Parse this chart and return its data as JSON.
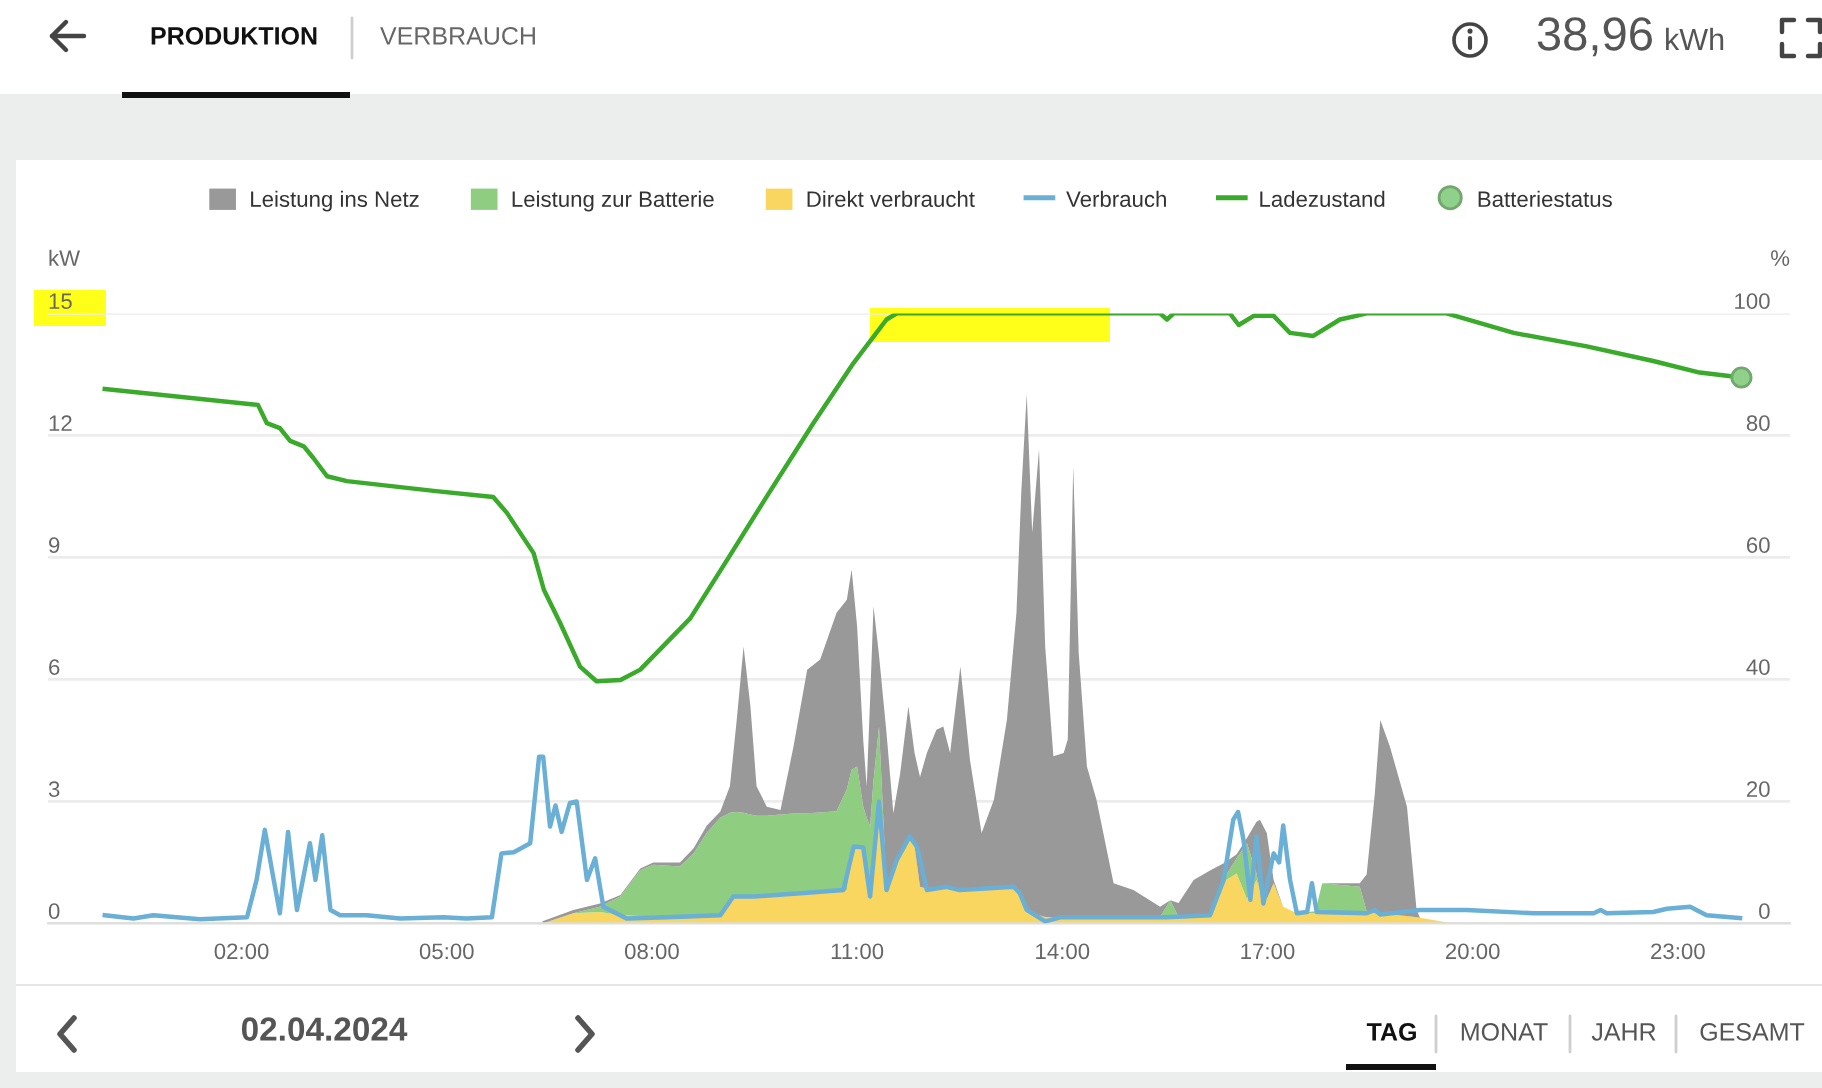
{
  "chart_data": {
    "type": "area",
    "stacked": true,
    "legend": "top",
    "grid": "y",
    "ylabel": "kW",
    "y2label": "%",
    "xlim": [
      -0.83,
      24.64
    ],
    "xticks": [
      {
        "value": 2,
        "label": "02:00"
      },
      {
        "value": 5,
        "label": "05:00"
      },
      {
        "value": 8,
        "label": "08:00"
      },
      {
        "value": 11,
        "label": "11:00"
      },
      {
        "value": 14,
        "label": "14:00"
      },
      {
        "value": 17,
        "label": "17:00"
      },
      {
        "value": 20,
        "label": "20:00"
      },
      {
        "value": 23,
        "label": "23:00"
      }
    ],
    "ylim": [
      0,
      15
    ],
    "yticks": [
      0,
      3,
      6,
      9,
      12,
      15
    ],
    "y2lim": [
      0,
      100
    ],
    "y2ticks": [
      0,
      20,
      40,
      60,
      80,
      100
    ],
    "x": [
      6.4,
      6.85,
      7.24,
      7.54,
      7.83,
      8.02,
      8.41,
      8.61,
      8.8,
      9.0,
      9.14,
      9.24,
      9.34,
      9.44,
      9.53,
      9.68,
      9.88,
      10.07,
      10.27,
      10.46,
      10.7,
      10.85,
      10.92,
      11.0,
      11.09,
      11.14,
      11.19,
      11.24,
      11.32,
      11.43,
      11.53,
      11.63,
      11.75,
      11.84,
      11.92,
      12.02,
      12.16,
      12.26,
      12.36,
      12.51,
      12.65,
      12.82,
      13.0,
      13.19,
      13.33,
      13.4,
      13.48,
      13.56,
      13.66,
      13.75,
      13.87,
      14.02,
      14.08,
      14.16,
      14.24,
      14.36,
      14.5,
      14.75,
      15.04,
      15.43,
      15.58,
      15.7,
      15.92,
      16.16,
      16.36,
      16.55,
      16.7,
      16.84,
      16.89,
      16.99,
      17.09,
      17.23,
      17.43,
      17.7,
      17.8,
      18.35,
      18.45,
      18.57,
      18.65,
      18.79,
      19.04,
      19.18,
      19.23,
      19.72
    ],
    "series": [
      {
        "name": "Direkt verbraucht",
        "color": "#f9d65f",
        "values": [
          0,
          0.25,
          0.28,
          0.2,
          0.18,
          0.18,
          0.18,
          0.2,
          0.2,
          0.21,
          0.6,
          0.66,
          0.66,
          0.66,
          0.66,
          0.68,
          0.7,
          0.7,
          0.72,
          0.75,
          0.8,
          0.82,
          1.6,
          1.89,
          1.81,
          1.2,
          0.66,
          1.5,
          2.96,
          0.82,
          1.3,
          1.75,
          2.1,
          1.9,
          0.9,
          0.85,
          0.85,
          0.85,
          0.85,
          0.82,
          0.85,
          0.85,
          0.88,
          0.9,
          0.9,
          0.6,
          0.33,
          0.25,
          0.2,
          0.16,
          0.16,
          0.16,
          0.16,
          0.16,
          0.16,
          0.16,
          0.16,
          0.16,
          0.16,
          0.16,
          0.16,
          0.16,
          0.18,
          0.21,
          1.03,
          1.23,
          0.6,
          1.07,
          0.8,
          0.6,
          0.99,
          0.41,
          0.25,
          0.25,
          0.25,
          0.25,
          0.25,
          0.25,
          0.25,
          0.22,
          0.18,
          0.15,
          0.14,
          0
        ]
      },
      {
        "name": "Leistung zur Batterie",
        "color": "#8fce80",
        "values": [
          0,
          0,
          0.13,
          0.46,
          1.13,
          1.26,
          1.22,
          1.52,
          2.02,
          2.39,
          2.12,
          2.08,
          2.06,
          2.02,
          1.99,
          1.97,
          1.98,
          2.0,
          1.99,
          1.98,
          1.96,
          2.48,
          2.18,
          1.97,
          1.06,
          1.4,
          1.72,
          2.0,
          1.88,
          0.08,
          0,
          0,
          0,
          0,
          0,
          0,
          0,
          0,
          0,
          0,
          0,
          0,
          0,
          0,
          0,
          0,
          0,
          0,
          0,
          0,
          0,
          0,
          0,
          0,
          0,
          0,
          0,
          0,
          0,
          0,
          0.41,
          0,
          0,
          0,
          0.07,
          0.37,
          1.37,
          0.16,
          0,
          0,
          0,
          0,
          0,
          0.05,
          0.74,
          0.65,
          0.05,
          0,
          0,
          0,
          0,
          0,
          0,
          0
        ]
      },
      {
        "name": "Leistung ins Netz",
        "color": "#999999",
        "values": [
          0.05,
          0.08,
          0.08,
          0.04,
          0.04,
          0.06,
          0.1,
          0.13,
          0.18,
          0.15,
          0.65,
          2.26,
          4.09,
          2.66,
          0.72,
          0.22,
          0.11,
          1.65,
          3.53,
          3.76,
          4.88,
          4.66,
          4.92,
          3.45,
          1.63,
          0.77,
          3.12,
          4.3,
          1.76,
          3.78,
          1.41,
          1.94,
          3.24,
          2.29,
          2.7,
          3.34,
          3.91,
          3.99,
          3.34,
          5.5,
          3.17,
          1.37,
          2.16,
          4.1,
          6.74,
          9.99,
          12.69,
          9.36,
          11.46,
          6.65,
          3.95,
          4.03,
          4.36,
          11.09,
          6.49,
          3.7,
          2.88,
          0.83,
          0.66,
          0.25,
          0,
          0.34,
          0.89,
          1.09,
          0.38,
          0.1,
          0.13,
          1.27,
          1.75,
          1.62,
          0.08,
          0,
          0,
          0,
          0,
          0.09,
          0.9,
          2.95,
          4.75,
          4.13,
          2.69,
          0.18,
          0,
          0
        ]
      },
      {
        "name": "Verbrauch",
        "type": "line",
        "color": "#6aafd5",
        "x": [
          0,
          0.42,
          0.71,
          1.39,
          2.08,
          2.22,
          2.34,
          2.47,
          2.56,
          2.68,
          2.81,
          3.0,
          3.08,
          3.18,
          3.3,
          3.44,
          3.83,
          4.32,
          4.95,
          5.29,
          5.66,
          5.8,
          5.98,
          6.22,
          6.35,
          6.41,
          6.51,
          6.59,
          6.68,
          6.8,
          6.9,
          7.05,
          7.17,
          7.29,
          7.44,
          7.63,
          8.22,
          9.0,
          9.19,
          9.5,
          10.17,
          10.8,
          10.95,
          11.09,
          11.19,
          11.32,
          11.43,
          11.58,
          11.77,
          11.88,
          12.02,
          12.31,
          12.5,
          13.29,
          13.38,
          13.48,
          13.75,
          13.97,
          15.53,
          16.16,
          16.36,
          16.5,
          16.57,
          16.65,
          16.75,
          16.84,
          16.94,
          17.09,
          17.17,
          17.23,
          17.33,
          17.43,
          17.58,
          17.65,
          17.72,
          18.45,
          18.57,
          18.65,
          19.23,
          19.91,
          20.89,
          21.77,
          21.87,
          21.96,
          22.64,
          22.84,
          23.18,
          23.42,
          23.91
        ],
        "values": [
          0.2,
          0.12,
          0.2,
          0.1,
          0.15,
          1.07,
          2.3,
          1.07,
          0.25,
          2.25,
          0.33,
          1.97,
          1.07,
          2.17,
          0.33,
          0.2,
          0.2,
          0.12,
          0.15,
          0.12,
          0.15,
          1.72,
          1.75,
          1.97,
          4.1,
          4.1,
          2.38,
          2.9,
          2.25,
          2.96,
          3.0,
          1.07,
          1.6,
          0.41,
          0.28,
          0.12,
          0.15,
          0.2,
          0.66,
          0.66,
          0.74,
          0.82,
          1.89,
          1.87,
          0.66,
          2.99,
          0.82,
          1.56,
          2.14,
          1.87,
          0.82,
          0.9,
          0.82,
          0.9,
          0.74,
          0.33,
          0.05,
          0.15,
          0.15,
          0.2,
          1.07,
          2.55,
          2.74,
          2.05,
          0.58,
          2.14,
          0.49,
          1.72,
          1.5,
          2.41,
          1.07,
          0.25,
          0.28,
          0.99,
          0.28,
          0.25,
          0.33,
          0.22,
          0.33,
          0.33,
          0.25,
          0.25,
          0.33,
          0.25,
          0.28,
          0.36,
          0.41,
          0.2,
          0.13
        ]
      },
      {
        "name": "Ladezustand",
        "type": "line",
        "axis": "y2",
        "color": "#3aaa2a",
        "x": [
          0,
          2.24,
          2.37,
          2.56,
          2.71,
          2.91,
          3.05,
          3.25,
          3.54,
          4.81,
          5.68,
          5.88,
          6.27,
          6.42,
          6.66,
          6.95,
          7.19,
          7.54,
          7.83,
          8.56,
          9.1,
          9.68,
          10.36,
          10.95,
          11.43,
          11.58,
          15.43,
          15.53,
          15.63,
          16.45,
          16.58,
          16.8,
          17.09,
          17.33,
          17.67,
          18.06,
          18.3,
          18.45,
          19.62,
          20.6,
          21.67,
          22.64,
          23.32,
          23.93
        ],
        "values": [
          87.6,
          85.0,
          82.0,
          81.2,
          79.1,
          78.2,
          76.3,
          73.3,
          72.5,
          70.9,
          69.9,
          67.3,
          60.7,
          54.7,
          49.2,
          42.1,
          39.7,
          39.9,
          41.6,
          50.0,
          59.6,
          70.0,
          82.0,
          91.9,
          99.0,
          100,
          100,
          99.0,
          100,
          100,
          98.1,
          99.6,
          99.6,
          96.8,
          96.3,
          99.0,
          99.6,
          100,
          100,
          96.8,
          94.6,
          92.2,
          90.3,
          89.5
        ]
      },
      {
        "name": "Batteriestatus",
        "type": "scatter",
        "axis": "y2",
        "color": "#8fd18a",
        "marker": "circle",
        "x": [
          23.93
        ],
        "values": [
          89.5
        ]
      }
    ],
    "annotations": [
      "PRODUKTION",
      "VERBRAUCH",
      "38,96",
      "kWh",
      "02.04.2024",
      "TAG",
      "MONAT",
      "JAHR",
      "GESAMT"
    ]
  }
}
